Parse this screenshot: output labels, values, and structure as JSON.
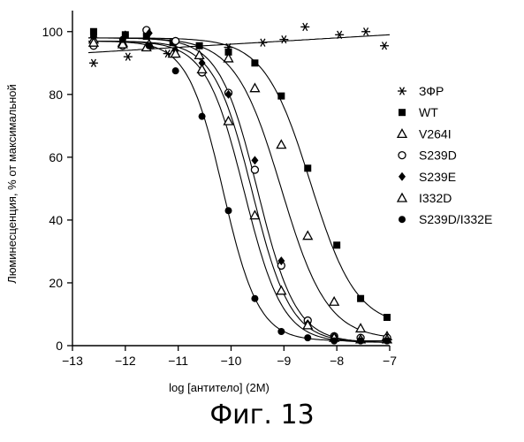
{
  "chart_data": {
    "type": "scatter",
    "xlabel": "log [антитело] (2M)",
    "ylabel": "Люминесценция, % от максимальной",
    "xlim": [
      -13,
      -7
    ],
    "ylim": [
      0,
      105
    ],
    "xticks": [
      -13,
      -12,
      -11,
      -10,
      -9,
      -8,
      -7
    ],
    "yticks": [
      0,
      20,
      40,
      60,
      80,
      100
    ],
    "grid": false,
    "legend_position": "right",
    "series": [
      {
        "name": "ЗФР",
        "marker": "asterisk",
        "fit": {
          "type": "linear",
          "y0": 93,
          "y1": 99
        },
        "points": [
          {
            "x": -12.6,
            "y": 90
          },
          {
            "x": -11.95,
            "y": 92
          },
          {
            "x": -11.2,
            "y": 93
          },
          {
            "x": -10.05,
            "y": 95
          },
          {
            "x": -9.4,
            "y": 96.5
          },
          {
            "x": -9.0,
            "y": 97.5
          },
          {
            "x": -8.6,
            "y": 101.5
          },
          {
            "x": -7.95,
            "y": 99
          },
          {
            "x": -7.45,
            "y": 100
          },
          {
            "x": -7.1,
            "y": 95.5
          }
        ]
      },
      {
        "name": "WT",
        "marker": "filled-square",
        "fit": {
          "type": "sigmoid",
          "top": 98,
          "bottom": 6,
          "ec50": -8.5,
          "hill": 1.0
        },
        "points": [
          {
            "x": -12.6,
            "y": 100
          },
          {
            "x": -12.0,
            "y": 99
          },
          {
            "x": -11.6,
            "y": 98.5
          },
          {
            "x": -11.1,
            "y": 96.5
          },
          {
            "x": -10.6,
            "y": 95.5
          },
          {
            "x": -10.05,
            "y": 93.5
          },
          {
            "x": -9.55,
            "y": 90
          },
          {
            "x": -9.05,
            "y": 79.5
          },
          {
            "x": -8.55,
            "y": 56.5
          },
          {
            "x": -8.0,
            "y": 32
          },
          {
            "x": -7.55,
            "y": 15
          },
          {
            "x": -7.05,
            "y": 9
          }
        ]
      },
      {
        "name": "V264I",
        "marker": "open-triangle",
        "fit": {
          "type": "sigmoid",
          "top": 98,
          "bottom": 2,
          "ec50": -9.05,
          "hill": 1.0
        },
        "points": [
          {
            "x": -12.6,
            "y": 97.5
          },
          {
            "x": -12.05,
            "y": 96.5
          },
          {
            "x": -11.55,
            "y": 96
          },
          {
            "x": -11.1,
            "y": 93
          },
          {
            "x": -10.6,
            "y": 92.5
          },
          {
            "x": -10.05,
            "y": 91.5
          },
          {
            "x": -9.55,
            "y": 82
          },
          {
            "x": -9.05,
            "y": 64
          },
          {
            "x": -8.55,
            "y": 35
          },
          {
            "x": -8.05,
            "y": 14
          },
          {
            "x": -7.55,
            "y": 5.5
          },
          {
            "x": -7.05,
            "y": 3
          }
        ]
      },
      {
        "name": "S239D",
        "marker": "open-circle",
        "fit": {
          "type": "sigmoid",
          "top": 97,
          "bottom": 1,
          "ec50": -9.6,
          "hill": 1.2
        },
        "points": [
          {
            "x": -12.6,
            "y": 95.5
          },
          {
            "x": -12.05,
            "y": 95.5
          },
          {
            "x": -11.6,
            "y": 100.5
          },
          {
            "x": -11.05,
            "y": 97
          },
          {
            "x": -10.55,
            "y": 87
          },
          {
            "x": -10.05,
            "y": 80.5
          },
          {
            "x": -9.55,
            "y": 56
          },
          {
            "x": -9.05,
            "y": 25.5
          },
          {
            "x": -8.55,
            "y": 8
          },
          {
            "x": -8.05,
            "y": 3
          },
          {
            "x": -7.55,
            "y": 2.5
          },
          {
            "x": -7.05,
            "y": 2.5
          }
        ]
      },
      {
        "name": "S239E",
        "marker": "filled-diamond",
        "fit": {
          "type": "sigmoid",
          "top": 98,
          "bottom": 1,
          "ec50": -9.5,
          "hill": 1.2
        },
        "points": [
          {
            "x": -12.6,
            "y": 99
          },
          {
            "x": -12.0,
            "y": 99
          },
          {
            "x": -11.55,
            "y": 99.5
          },
          {
            "x": -11.05,
            "y": 94
          },
          {
            "x": -10.55,
            "y": 90
          },
          {
            "x": -10.05,
            "y": 80
          },
          {
            "x": -9.55,
            "y": 59
          },
          {
            "x": -9.05,
            "y": 27
          },
          {
            "x": -8.55,
            "y": 7
          },
          {
            "x": -8.05,
            "y": 3
          },
          {
            "x": -7.55,
            "y": 2
          },
          {
            "x": -7.05,
            "y": 2
          }
        ]
      },
      {
        "name": "I332D",
        "marker": "open-triangle",
        "fit": {
          "type": "sigmoid",
          "top": 97,
          "bottom": 1,
          "ec50": -9.75,
          "hill": 1.2
        },
        "points": [
          {
            "x": -12.6,
            "y": 96.5
          },
          {
            "x": -12.05,
            "y": 96
          },
          {
            "x": -11.6,
            "y": 95
          },
          {
            "x": -11.05,
            "y": 93
          },
          {
            "x": -10.55,
            "y": 88
          },
          {
            "x": -10.05,
            "y": 71.5
          },
          {
            "x": -9.55,
            "y": 41.5
          },
          {
            "x": -9.05,
            "y": 17.5
          },
          {
            "x": -8.55,
            "y": 6.5
          },
          {
            "x": -8.05,
            "y": 2.5
          },
          {
            "x": -7.55,
            "y": 2
          },
          {
            "x": -7.05,
            "y": 2
          }
        ]
      },
      {
        "name": "S239D/I332E",
        "marker": "filled-circle",
        "fit": {
          "type": "sigmoid",
          "top": 97,
          "bottom": 1.5,
          "ec50": -10.15,
          "hill": 1.3
        },
        "points": [
          {
            "x": -12.6,
            "y": 98.5
          },
          {
            "x": -12.05,
            "y": 97.5
          },
          {
            "x": -11.55,
            "y": 95.5
          },
          {
            "x": -11.05,
            "y": 87.5
          },
          {
            "x": -10.55,
            "y": 73
          },
          {
            "x": -10.05,
            "y": 43
          },
          {
            "x": -9.55,
            "y": 15
          },
          {
            "x": -9.05,
            "y": 4.5
          },
          {
            "x": -8.55,
            "y": 2.5
          },
          {
            "x": -8.05,
            "y": 1.5
          },
          {
            "x": -7.55,
            "y": 1.5
          },
          {
            "x": -7.05,
            "y": 1.5
          }
        ]
      }
    ]
  },
  "figure": {
    "caption": "Фиг. 13"
  }
}
